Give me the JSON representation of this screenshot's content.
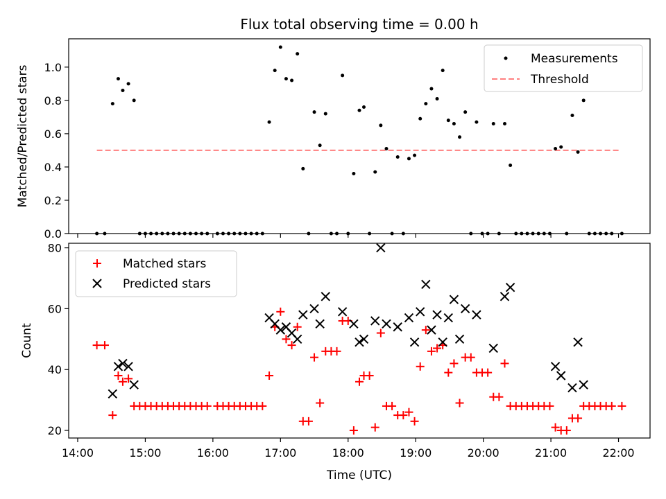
{
  "chart_data": [
    {
      "type": "scatter",
      "title": "Flux total observing time = 0.00 h",
      "xlabel": "",
      "ylabel": "Matched/Predicted stars",
      "xlim": [
        "13:52",
        "22:28"
      ],
      "ylim": [
        0,
        1.17
      ],
      "yticks": [
        "0.0",
        "0.2",
        "0.4",
        "0.6",
        "0.8",
        "1.0"
      ],
      "legend": {
        "placement": "top-right",
        "entries": [
          "Measurements",
          "Threshold"
        ]
      },
      "threshold": {
        "name": "Threshold",
        "value": 0.5,
        "x_range": [
          "14:17",
          "22:02"
        ],
        "color": "#ff7f7f"
      },
      "series": [
        {
          "name": "Measurements",
          "color": "#000000",
          "points": [
            [
              "14:17",
              0
            ],
            [
              "14:24",
              0
            ],
            [
              "14:31",
              0.78
            ],
            [
              "14:36",
              0.93
            ],
            [
              "14:40",
              0.86
            ],
            [
              "14:45",
              0.9
            ],
            [
              "14:50",
              0.8
            ],
            [
              "14:55",
              0
            ],
            [
              "15:00",
              0
            ],
            [
              "15:05",
              0
            ],
            [
              "15:10",
              0
            ],
            [
              "15:15",
              0
            ],
            [
              "15:20",
              0
            ],
            [
              "15:25",
              0
            ],
            [
              "15:30",
              0
            ],
            [
              "15:35",
              0
            ],
            [
              "15:40",
              0
            ],
            [
              "15:45",
              0
            ],
            [
              "15:50",
              0
            ],
            [
              "15:55",
              0
            ],
            [
              "16:04",
              0
            ],
            [
              "16:09",
              0
            ],
            [
              "16:14",
              0
            ],
            [
              "16:19",
              0
            ],
            [
              "16:24",
              0
            ],
            [
              "16:29",
              0
            ],
            [
              "16:34",
              0
            ],
            [
              "16:39",
              0
            ],
            [
              "16:44",
              0
            ],
            [
              "16:50",
              0.67
            ],
            [
              "16:55",
              0.98
            ],
            [
              "17:00",
              1.12
            ],
            [
              "17:05",
              0.93
            ],
            [
              "17:10",
              0.92
            ],
            [
              "17:15",
              1.08
            ],
            [
              "17:20",
              0.39
            ],
            [
              "17:25",
              0
            ],
            [
              "17:30",
              0.73
            ],
            [
              "17:35",
              0.53
            ],
            [
              "17:40",
              0.72
            ],
            [
              "17:45",
              0
            ],
            [
              "17:50",
              0
            ],
            [
              "17:55",
              0.95
            ],
            [
              "18:00",
              0
            ],
            [
              "18:05",
              0.36
            ],
            [
              "18:10",
              0.74
            ],
            [
              "18:14",
              0.76
            ],
            [
              "18:19",
              0
            ],
            [
              "18:24",
              0.37
            ],
            [
              "18:29",
              0.65
            ],
            [
              "18:34",
              0.51
            ],
            [
              "18:39",
              0
            ],
            [
              "18:44",
              0.46
            ],
            [
              "18:49",
              0
            ],
            [
              "18:54",
              0.45
            ],
            [
              "18:59",
              0.47
            ],
            [
              "19:04",
              0.69
            ],
            [
              "19:09",
              0.78
            ],
            [
              "19:14",
              0.87
            ],
            [
              "19:19",
              0.81
            ],
            [
              "19:24",
              0.98
            ],
            [
              "19:29",
              0.68
            ],
            [
              "19:34",
              0.66
            ],
            [
              "19:39",
              0.58
            ],
            [
              "19:44",
              0.73
            ],
            [
              "19:49",
              0
            ],
            [
              "19:54",
              0.67
            ],
            [
              "19:59",
              0
            ],
            [
              "20:04",
              0
            ],
            [
              "20:09",
              0.66
            ],
            [
              "20:14",
              0
            ],
            [
              "20:19",
              0.66
            ],
            [
              "20:24",
              0.41
            ],
            [
              "20:29",
              0
            ],
            [
              "20:34",
              0
            ],
            [
              "20:39",
              0
            ],
            [
              "20:44",
              0
            ],
            [
              "20:49",
              0
            ],
            [
              "20:54",
              0
            ],
            [
              "20:59",
              0
            ],
            [
              "21:04",
              0.51
            ],
            [
              "21:09",
              0.52
            ],
            [
              "21:14",
              0
            ],
            [
              "21:19",
              0.71
            ],
            [
              "21:24",
              0.49
            ],
            [
              "21:29",
              0.8
            ],
            [
              "21:34",
              0
            ],
            [
              "21:39",
              0
            ],
            [
              "21:44",
              0
            ],
            [
              "21:49",
              0
            ],
            [
              "21:54",
              0
            ],
            [
              "22:03",
              0
            ]
          ]
        }
      ]
    },
    {
      "type": "scatter",
      "title": "",
      "xlabel": "Time (UTC)",
      "ylabel": "Count",
      "xlim": [
        "13:52",
        "22:28"
      ],
      "ylim": [
        17.5,
        81.5
      ],
      "yticks": [
        "20",
        "40",
        "60",
        "80"
      ],
      "xticks": [
        "14:00",
        "15:00",
        "16:00",
        "17:00",
        "18:00",
        "19:00",
        "20:00",
        "21:00",
        "22:00"
      ],
      "legend": {
        "placement": "top-left",
        "entries": [
          "Matched stars",
          "Predicted stars"
        ]
      },
      "series": [
        {
          "name": "Matched stars",
          "color": "#ff0000",
          "marker": "plus",
          "points": [
            [
              "14:17",
              48
            ],
            [
              "14:24",
              48
            ],
            [
              "14:31",
              25
            ],
            [
              "14:36",
              38
            ],
            [
              "14:40",
              36
            ],
            [
              "14:45",
              37
            ],
            [
              "14:50",
              28
            ],
            [
              "14:55",
              28
            ],
            [
              "15:00",
              28
            ],
            [
              "15:05",
              28
            ],
            [
              "15:10",
              28
            ],
            [
              "15:15",
              28
            ],
            [
              "15:20",
              28
            ],
            [
              "15:25",
              28
            ],
            [
              "15:30",
              28
            ],
            [
              "15:35",
              28
            ],
            [
              "15:40",
              28
            ],
            [
              "15:45",
              28
            ],
            [
              "15:50",
              28
            ],
            [
              "15:55",
              28
            ],
            [
              "16:04",
              28
            ],
            [
              "16:09",
              28
            ],
            [
              "16:14",
              28
            ],
            [
              "16:19",
              28
            ],
            [
              "16:24",
              28
            ],
            [
              "16:29",
              28
            ],
            [
              "16:34",
              28
            ],
            [
              "16:39",
              28
            ],
            [
              "16:44",
              28
            ],
            [
              "16:50",
              38
            ],
            [
              "16:55",
              54
            ],
            [
              "17:00",
              59
            ],
            [
              "17:05",
              50
            ],
            [
              "17:10",
              48
            ],
            [
              "17:15",
              54
            ],
            [
              "17:20",
              23
            ],
            [
              "17:25",
              23
            ],
            [
              "17:30",
              44
            ],
            [
              "17:35",
              29
            ],
            [
              "17:40",
              46
            ],
            [
              "17:45",
              46
            ],
            [
              "17:50",
              46
            ],
            [
              "17:55",
              56
            ],
            [
              "18:00",
              56
            ],
            [
              "18:05",
              20
            ],
            [
              "18:10",
              36
            ],
            [
              "18:14",
              38
            ],
            [
              "18:19",
              38
            ],
            [
              "18:24",
              21
            ],
            [
              "18:29",
              52
            ],
            [
              "18:34",
              28
            ],
            [
              "18:39",
              28
            ],
            [
              "18:44",
              25
            ],
            [
              "18:49",
              25
            ],
            [
              "18:54",
              26
            ],
            [
              "18:59",
              23
            ],
            [
              "19:04",
              41
            ],
            [
              "19:09",
              53
            ],
            [
              "19:14",
              46
            ],
            [
              "19:19",
              47
            ],
            [
              "19:24",
              48
            ],
            [
              "19:29",
              39
            ],
            [
              "19:34",
              42
            ],
            [
              "19:39",
              29
            ],
            [
              "19:44",
              44
            ],
            [
              "19:49",
              44
            ],
            [
              "19:54",
              39
            ],
            [
              "19:59",
              39
            ],
            [
              "20:04",
              39
            ],
            [
              "20:09",
              31
            ],
            [
              "20:14",
              31
            ],
            [
              "20:19",
              42
            ],
            [
              "20:24",
              28
            ],
            [
              "20:29",
              28
            ],
            [
              "20:34",
              28
            ],
            [
              "20:39",
              28
            ],
            [
              "20:44",
              28
            ],
            [
              "20:49",
              28
            ],
            [
              "20:54",
              28
            ],
            [
              "20:59",
              28
            ],
            [
              "21:04",
              21
            ],
            [
              "21:09",
              20
            ],
            [
              "21:14",
              20
            ],
            [
              "21:19",
              24
            ],
            [
              "21:24",
              24
            ],
            [
              "21:29",
              28
            ],
            [
              "21:34",
              28
            ],
            [
              "21:39",
              28
            ],
            [
              "21:44",
              28
            ],
            [
              "21:49",
              28
            ],
            [
              "21:54",
              28
            ],
            [
              "22:03",
              28
            ]
          ]
        },
        {
          "name": "Predicted stars",
          "color": "#000000",
          "marker": "x",
          "points": [
            [
              "14:31",
              32
            ],
            [
              "14:36",
              41
            ],
            [
              "14:40",
              42
            ],
            [
              "14:45",
              41
            ],
            [
              "14:50",
              35
            ],
            [
              "16:50",
              57
            ],
            [
              "16:55",
              55
            ],
            [
              "17:00",
              53
            ],
            [
              "17:05",
              54
            ],
            [
              "17:10",
              52
            ],
            [
              "17:15",
              50
            ],
            [
              "17:20",
              58
            ],
            [
              "17:30",
              60
            ],
            [
              "17:35",
              55
            ],
            [
              "17:40",
              64
            ],
            [
              "17:55",
              59
            ],
            [
              "18:05",
              55
            ],
            [
              "18:10",
              49
            ],
            [
              "18:14",
              50
            ],
            [
              "18:24",
              56
            ],
            [
              "18:29",
              80
            ],
            [
              "18:34",
              55
            ],
            [
              "18:44",
              54
            ],
            [
              "18:54",
              57
            ],
            [
              "18:59",
              49
            ],
            [
              "19:04",
              59
            ],
            [
              "19:09",
              68
            ],
            [
              "19:14",
              53
            ],
            [
              "19:19",
              58
            ],
            [
              "19:24",
              49
            ],
            [
              "19:29",
              57
            ],
            [
              "19:34",
              63
            ],
            [
              "19:39",
              50
            ],
            [
              "19:44",
              60
            ],
            [
              "19:54",
              58
            ],
            [
              "20:09",
              47
            ],
            [
              "20:19",
              64
            ],
            [
              "20:24",
              67
            ],
            [
              "21:04",
              41
            ],
            [
              "21:09",
              38
            ],
            [
              "21:19",
              34
            ],
            [
              "21:24",
              49
            ],
            [
              "21:29",
              35
            ]
          ]
        }
      ]
    }
  ]
}
